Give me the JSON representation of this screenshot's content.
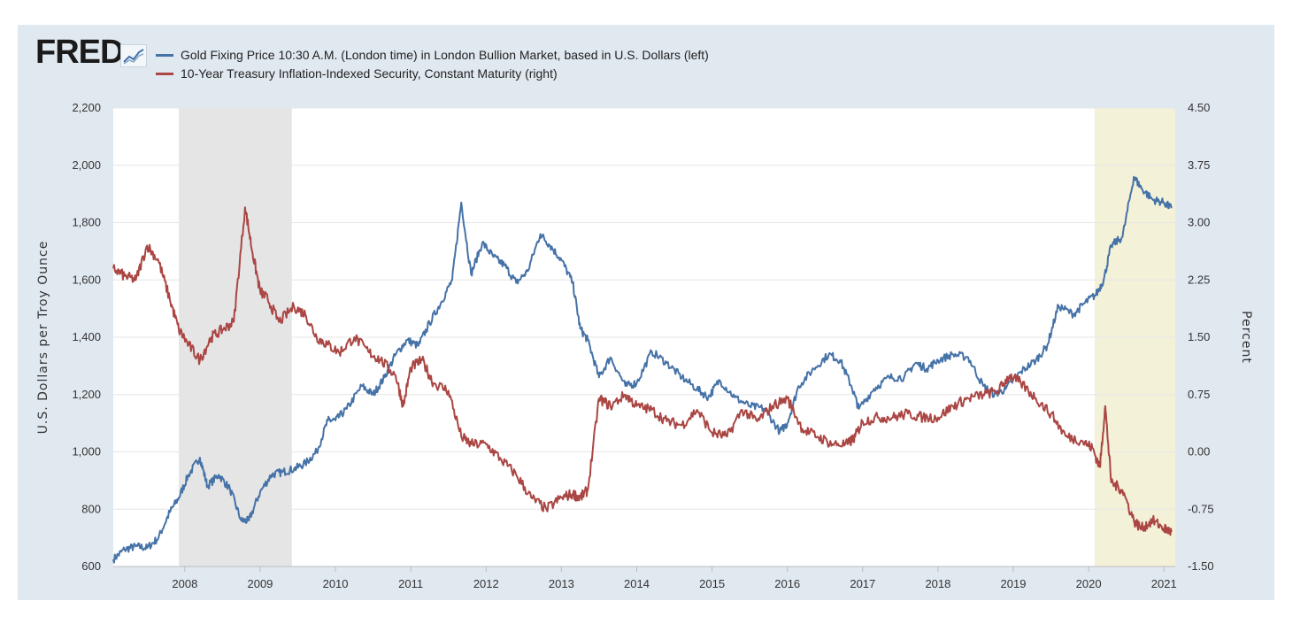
{
  "logo": {
    "text": "FRED",
    "icon": "chart-line-icon"
  },
  "legend": [
    {
      "label": "Gold Fixing Price 10:30 A.M. (London time) in London Bullion Market, based in U.S. Dollars (left)",
      "color": "#4572a7"
    },
    {
      "label": "10-Year Treasury Inflation-Indexed Security, Constant Maturity (right)",
      "color": "#aa4643"
    }
  ],
  "chart_data": {
    "type": "line",
    "title": "",
    "xlabel": "",
    "ylabel_left": "U.S. Dollars per Troy Ounce",
    "ylabel_right": "Percent",
    "xlim": [
      2007.05,
      2021.15
    ],
    "ylim_left": [
      600,
      2200
    ],
    "ylim_right": [
      -1.5,
      4.5
    ],
    "x_ticks": [
      2008,
      2009,
      2010,
      2011,
      2012,
      2013,
      2014,
      2015,
      2016,
      2017,
      2018,
      2019,
      2020,
      2021
    ],
    "y_ticks_left": [
      "600",
      "800",
      "1,000",
      "1,200",
      "1,400",
      "1,600",
      "1,800",
      "2,000",
      "2,200"
    ],
    "y_ticks_right": [
      "-1.50",
      "-0.75",
      "0.00",
      "0.75",
      "1.50",
      "2.25",
      "3.00",
      "3.75",
      "4.50"
    ],
    "shaded_regions": [
      {
        "x_start": 2007.92,
        "x_end": 2009.42,
        "color": "#e5e5e5"
      },
      {
        "x_start": 2020.08,
        "x_end": 2021.15,
        "color": "#f4f1d9"
      }
    ],
    "grid": true,
    "legend_position": "top-left",
    "series": [
      {
        "name": "Gold Fixing Price 10:30 A.M. (London time) in London Bullion Market, based in U.S. Dollars (left)",
        "axis": "left",
        "color": "#4572a7",
        "x": [
          2007.05,
          2007.2,
          2007.35,
          2007.5,
          2007.65,
          2007.8,
          2007.92,
          2008.05,
          2008.2,
          2008.3,
          2008.45,
          2008.6,
          2008.75,
          2008.85,
          2009.0,
          2009.15,
          2009.3,
          2009.45,
          2009.6,
          2009.75,
          2009.9,
          2010.0,
          2010.15,
          2010.35,
          2010.5,
          2010.65,
          2010.8,
          2010.95,
          2011.1,
          2011.25,
          2011.4,
          2011.55,
          2011.67,
          2011.8,
          2011.95,
          2012.1,
          2012.25,
          2012.4,
          2012.55,
          2012.72,
          2012.85,
          2013.0,
          2013.15,
          2013.25,
          2013.35,
          2013.5,
          2013.65,
          2013.85,
          2014.0,
          2014.2,
          2014.4,
          2014.6,
          2014.8,
          2014.95,
          2015.1,
          2015.3,
          2015.5,
          2015.7,
          2015.9,
          2016.0,
          2016.15,
          2016.35,
          2016.55,
          2016.7,
          2016.85,
          2016.95,
          2017.15,
          2017.35,
          2017.55,
          2017.7,
          2017.85,
          2018.0,
          2018.2,
          2018.4,
          2018.6,
          2018.75,
          2018.9,
          2019.1,
          2019.3,
          2019.45,
          2019.6,
          2019.8,
          2019.95,
          2020.1,
          2020.2,
          2020.3,
          2020.45,
          2020.6,
          2020.7,
          2020.85,
          2021.0,
          2021.1
        ],
        "y": [
          625,
          660,
          670,
          665,
          700,
          790,
          840,
          920,
          980,
          880,
          920,
          870,
          760,
          760,
          860,
          920,
          930,
          940,
          960,
          1000,
          1110,
          1110,
          1150,
          1230,
          1200,
          1260,
          1340,
          1390,
          1370,
          1450,
          1520,
          1600,
          1870,
          1620,
          1730,
          1680,
          1650,
          1590,
          1630,
          1760,
          1720,
          1670,
          1590,
          1430,
          1390,
          1260,
          1330,
          1230,
          1240,
          1350,
          1310,
          1260,
          1220,
          1190,
          1250,
          1190,
          1160,
          1150,
          1070,
          1100,
          1230,
          1290,
          1340,
          1320,
          1230,
          1150,
          1220,
          1260,
          1260,
          1310,
          1290,
          1320,
          1340,
          1330,
          1230,
          1200,
          1220,
          1280,
          1320,
          1370,
          1510,
          1480,
          1520,
          1550,
          1600,
          1720,
          1750,
          1960,
          1920,
          1880,
          1870,
          1850
        ]
      },
      {
        "name": "10-Year Treasury Inflation-Indexed Security, Constant Maturity (right)",
        "axis": "right",
        "color": "#aa4643",
        "x": [
          2007.05,
          2007.2,
          2007.35,
          2007.5,
          2007.65,
          2007.8,
          2007.92,
          2008.05,
          2008.2,
          2008.35,
          2008.5,
          2008.65,
          2008.8,
          2008.9,
          2009.0,
          2009.1,
          2009.25,
          2009.45,
          2009.6,
          2009.75,
          2009.9,
          2010.05,
          2010.25,
          2010.45,
          2010.6,
          2010.8,
          2010.9,
          2011.0,
          2011.15,
          2011.3,
          2011.5,
          2011.67,
          2011.8,
          2012.0,
          2012.2,
          2012.4,
          2012.6,
          2012.8,
          2013.0,
          2013.15,
          2013.25,
          2013.35,
          2013.5,
          2013.65,
          2013.85,
          2014.0,
          2014.2,
          2014.4,
          2014.6,
          2014.8,
          2015.0,
          2015.2,
          2015.4,
          2015.6,
          2015.8,
          2016.0,
          2016.2,
          2016.4,
          2016.6,
          2016.8,
          2016.9,
          2017.0,
          2017.2,
          2017.4,
          2017.6,
          2017.8,
          2018.0,
          2018.2,
          2018.4,
          2018.6,
          2018.8,
          2018.95,
          2019.1,
          2019.3,
          2019.5,
          2019.7,
          2019.9,
          2020.05,
          2020.15,
          2020.22,
          2020.3,
          2020.45,
          2020.6,
          2020.7,
          2020.85,
          2021.0,
          2021.1
        ],
        "y": [
          2.4,
          2.3,
          2.25,
          2.7,
          2.5,
          2.0,
          1.6,
          1.4,
          1.2,
          1.5,
          1.6,
          1.7,
          3.2,
          2.6,
          2.1,
          2.0,
          1.7,
          1.9,
          1.8,
          1.5,
          1.4,
          1.3,
          1.5,
          1.3,
          1.2,
          1.0,
          0.6,
          1.1,
          1.2,
          0.9,
          0.8,
          0.2,
          0.1,
          0.1,
          -0.1,
          -0.3,
          -0.6,
          -0.75,
          -0.6,
          -0.55,
          -0.6,
          -0.5,
          0.7,
          0.6,
          0.75,
          0.6,
          0.55,
          0.4,
          0.35,
          0.55,
          0.25,
          0.2,
          0.55,
          0.4,
          0.6,
          0.7,
          0.3,
          0.2,
          0.1,
          0.1,
          0.2,
          0.4,
          0.45,
          0.45,
          0.5,
          0.45,
          0.45,
          0.6,
          0.7,
          0.75,
          0.8,
          1.0,
          0.9,
          0.7,
          0.5,
          0.2,
          0.15,
          0.05,
          -0.2,
          0.6,
          -0.4,
          -0.5,
          -0.9,
          -1.0,
          -0.9,
          -1.0,
          -1.05
        ]
      }
    ]
  }
}
